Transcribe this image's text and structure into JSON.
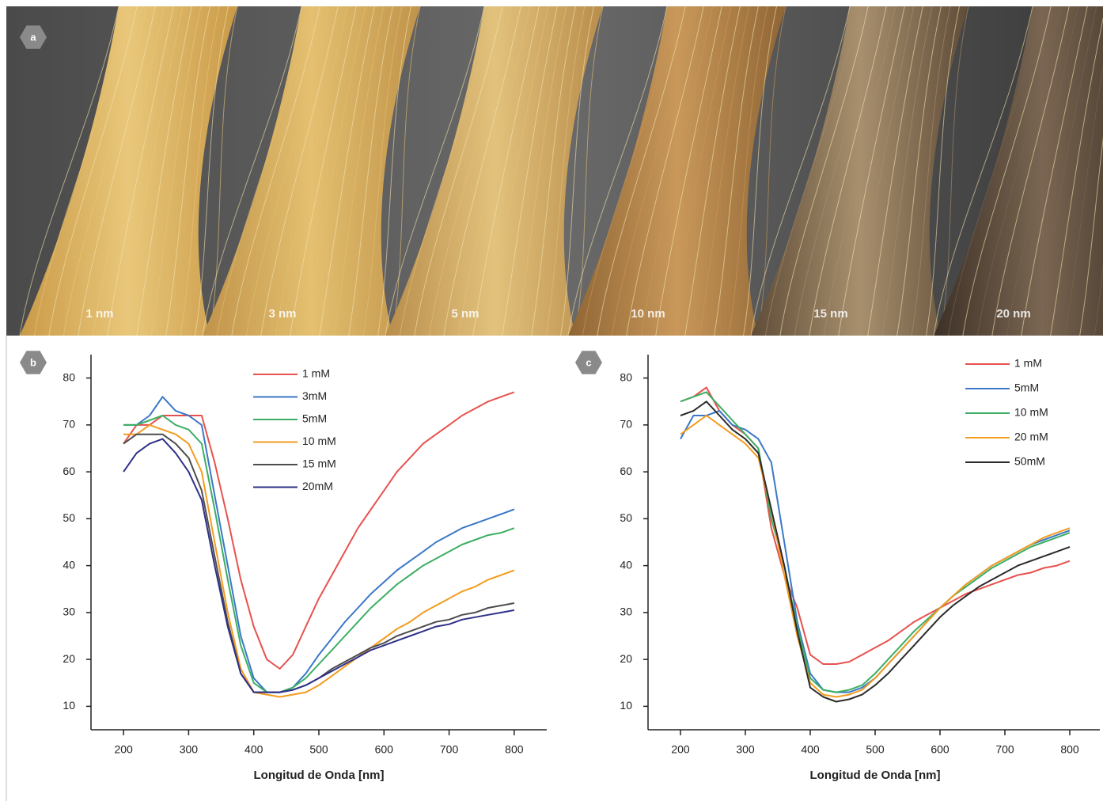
{
  "photo": {
    "panel_label": "a",
    "labels": [
      "1 nm",
      "3 nm",
      "5 nm",
      "10 nm",
      "15 nm",
      "20 nm"
    ]
  },
  "chart_data": [
    {
      "type": "line",
      "panel_label": "b",
      "x_label": "Longitud de Onda [nm]",
      "x": [
        200,
        220,
        240,
        260,
        280,
        300,
        320,
        340,
        360,
        380,
        400,
        420,
        440,
        460,
        480,
        500,
        520,
        540,
        560,
        580,
        600,
        620,
        640,
        660,
        680,
        700,
        720,
        740,
        760,
        780,
        800
      ],
      "xlim": [
        150,
        850
      ],
      "xticks": [
        200,
        300,
        400,
        500,
        600,
        700,
        800
      ],
      "ylim": [
        5,
        85
      ],
      "yticks": [
        10,
        20,
        30,
        40,
        50,
        60,
        70,
        80
      ],
      "legend": "upper center",
      "series": [
        {
          "name": "1 mM",
          "color": "#e8514e",
          "values": [
            66,
            70,
            70,
            72,
            72,
            72,
            72,
            62,
            50,
            37,
            27,
            20,
            18,
            21,
            27,
            33,
            38,
            43,
            48,
            52,
            56,
            60,
            63,
            66,
            68,
            70,
            72,
            73.5,
            75,
            76,
            77
          ]
        },
        {
          "name": "3mM",
          "color": "#3b78c7",
          "values": [
            70,
            70,
            72,
            76,
            73,
            72,
            70,
            55,
            40,
            25,
            16,
            13,
            13,
            14,
            17,
            21,
            24.5,
            28,
            31,
            34,
            36.5,
            39,
            41,
            43,
            45,
            46.5,
            48,
            49,
            50,
            51,
            52
          ]
        },
        {
          "name": "5mM",
          "color": "#3cae63",
          "values": [
            70,
            70,
            71,
            72,
            70,
            69,
            66,
            52,
            37,
            23,
            15,
            13,
            13,
            14,
            16,
            19,
            22,
            25,
            28,
            31,
            33.5,
            36,
            38,
            40,
            41.5,
            43,
            44.5,
            45.5,
            46.5,
            47,
            48
          ]
        },
        {
          "name": "10 mM",
          "color": "#f39c1f",
          "values": [
            68,
            68,
            70,
            69,
            68,
            66,
            60,
            45,
            30,
            18,
            13,
            12.5,
            12,
            12.5,
            13,
            14.5,
            16.5,
            18.5,
            20.5,
            22.5,
            24.5,
            26.5,
            28,
            30,
            31.5,
            33,
            34.5,
            35.5,
            37,
            38,
            39
          ]
        },
        {
          "name": "15 mM",
          "color": "#4d4d4d",
          "values": [
            66,
            68,
            68,
            68,
            66,
            63,
            56,
            42,
            28,
            17,
            13,
            13,
            13,
            13.5,
            14.5,
            16,
            18,
            19.5,
            21,
            22.5,
            23.5,
            25,
            26,
            27,
            28,
            28.5,
            29.5,
            30,
            31,
            31.5,
            32
          ]
        },
        {
          "name": "20mM",
          "color": "#2e3088",
          "values": [
            60,
            64,
            66,
            67,
            64,
            60,
            54,
            40,
            27,
            17,
            13,
            13,
            13,
            13.5,
            14.5,
            16,
            17.5,
            19,
            20.5,
            22,
            23,
            24,
            25,
            26,
            27,
            27.5,
            28.5,
            29,
            29.5,
            30,
            30.5
          ]
        }
      ]
    },
    {
      "type": "line",
      "panel_label": "c",
      "x_label": "Longitud de Onda [nm]",
      "x": [
        200,
        220,
        240,
        260,
        280,
        300,
        320,
        340,
        360,
        380,
        400,
        420,
        440,
        460,
        480,
        500,
        520,
        540,
        560,
        580,
        600,
        620,
        640,
        660,
        680,
        700,
        720,
        740,
        760,
        780,
        800
      ],
      "xlim": [
        150,
        850
      ],
      "xticks": [
        200,
        300,
        400,
        500,
        600,
        700,
        800
      ],
      "ylim": [
        5,
        85
      ],
      "yticks": [
        10,
        20,
        30,
        40,
        50,
        60,
        70,
        80
      ],
      "legend": "upper right",
      "series": [
        {
          "name": "1 mM",
          "color": "#e8514e",
          "values": [
            75,
            76,
            78,
            73,
            70,
            68,
            65,
            48,
            38,
            31,
            21,
            19,
            19,
            19.5,
            21,
            22.5,
            24,
            26,
            28,
            29.5,
            31,
            32.5,
            34,
            35,
            36,
            37,
            38,
            38.5,
            39.5,
            40,
            41
          ]
        },
        {
          "name": "5mM",
          "color": "#3b78c7",
          "values": [
            67,
            72,
            72,
            73,
            70,
            69,
            67,
            62,
            45,
            28,
            17,
            13.5,
            13,
            13,
            14,
            16,
            19,
            22,
            25,
            28,
            31,
            33.5,
            36,
            38,
            40,
            41.5,
            43,
            44.5,
            45.5,
            46.5,
            47.5
          ]
        },
        {
          "name": "10 mM",
          "color": "#3cae63",
          "values": [
            75,
            76,
            77,
            74,
            71,
            68,
            65,
            50,
            40,
            27,
            16,
            13.5,
            13,
            13.5,
            14.5,
            17,
            20,
            23,
            26,
            28.5,
            31,
            33.5,
            35.5,
            37.5,
            39.5,
            41,
            42.5,
            44,
            45,
            46,
            47
          ]
        },
        {
          "name": "20 mM",
          "color": "#f39c1f",
          "values": [
            68,
            70,
            72,
            70,
            68,
            66,
            63,
            52,
            38,
            25,
            15,
            12.5,
            12,
            12.5,
            13.5,
            16,
            19,
            22,
            25,
            28,
            31,
            33.5,
            36,
            38,
            40,
            41.5,
            43,
            44.5,
            46,
            47,
            48
          ]
        },
        {
          "name": "50mM",
          "color": "#2b2b2b",
          "values": [
            72,
            73,
            75,
            72,
            69,
            67,
            64,
            52,
            40,
            26,
            14,
            12,
            11,
            11.5,
            12.5,
            14.5,
            17,
            20,
            23,
            26,
            29,
            31.5,
            33.5,
            35.5,
            37,
            38.5,
            40,
            41,
            42,
            43,
            44
          ]
        }
      ]
    }
  ]
}
